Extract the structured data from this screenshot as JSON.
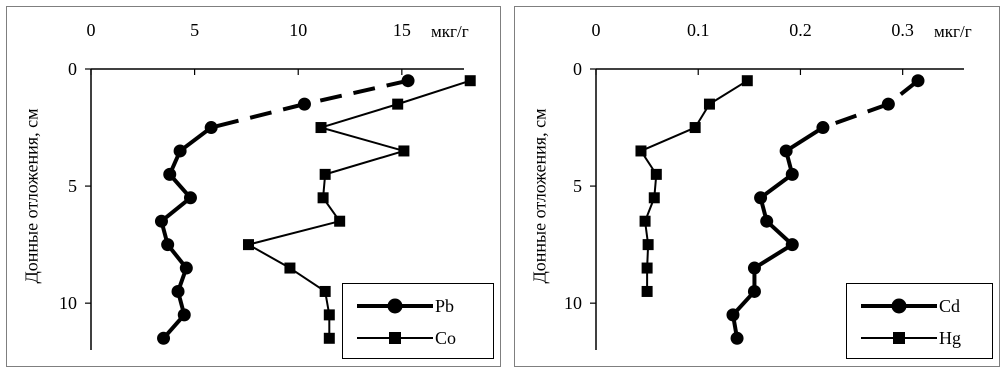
{
  "chart_data": [
    {
      "type": "line",
      "x_unit": "мкг/г",
      "ylabel": "Донные отложения, см",
      "xlim": [
        0,
        18
      ],
      "ylim": [
        0,
        12
      ],
      "x_ticks": [
        0,
        5,
        10,
        15
      ],
      "x_tick_labels": [
        "0",
        "5",
        "10",
        "15"
      ],
      "y_ticks": [
        0,
        5,
        10
      ],
      "y_tick_labels": [
        "0",
        "5",
        "10"
      ],
      "y_inverted": true,
      "x_axis_position": "top",
      "series": [
        {
          "name": "Pb",
          "marker": "circle",
          "line": "dashed-top-solid-bottom",
          "x": [
            15.3,
            10.3,
            5.8,
            4.3,
            3.8,
            4.8,
            3.4,
            3.7,
            4.6,
            4.2,
            4.5,
            3.5
          ],
          "y": [
            0.5,
            1.5,
            2.5,
            3.5,
            4.5,
            5.5,
            6.5,
            7.5,
            8.5,
            9.5,
            10.5,
            11.5
          ]
        },
        {
          "name": "Co",
          "marker": "square",
          "line": "solid",
          "x": [
            18.3,
            14.8,
            11.1,
            15.1,
            11.3,
            11.2,
            12.0,
            7.6,
            9.6,
            11.3,
            11.5,
            11.5
          ],
          "y": [
            0.5,
            1.5,
            2.5,
            3.5,
            4.5,
            5.5,
            6.5,
            7.5,
            8.5,
            9.5,
            10.5,
            11.5
          ]
        }
      ],
      "legend": "bottom-right"
    },
    {
      "type": "line",
      "x_unit": "мкг/г",
      "ylabel": "Донные отложения, см",
      "xlim": [
        0,
        0.36
      ],
      "ylim": [
        0,
        12
      ],
      "x_ticks": [
        0,
        0.1,
        0.2,
        0.3
      ],
      "x_tick_labels": [
        "0",
        "0.1",
        "0.2",
        "0.3"
      ],
      "y_ticks": [
        0,
        5,
        10
      ],
      "y_tick_labels": [
        "0",
        "5",
        "10"
      ],
      "y_inverted": true,
      "x_axis_position": "top",
      "series": [
        {
          "name": "Cd",
          "marker": "circle",
          "line": "dashed-top-solid-bottom",
          "x": [
            0.315,
            0.286,
            0.222,
            0.186,
            0.192,
            0.161,
            0.167,
            0.192,
            0.155,
            0.155,
            0.134,
            0.138
          ],
          "y": [
            0.5,
            1.5,
            2.5,
            3.5,
            4.5,
            5.5,
            6.5,
            7.5,
            8.5,
            9.5,
            10.5,
            11.5
          ]
        },
        {
          "name": "Hg",
          "marker": "square",
          "line": "solid",
          "x": [
            0.148,
            0.111,
            0.097,
            0.044,
            0.059,
            0.057,
            0.048,
            0.051,
            0.05,
            0.05
          ],
          "y": [
            0.5,
            1.5,
            2.5,
            3.5,
            4.5,
            5.5,
            6.5,
            7.5,
            8.5,
            9.5
          ]
        }
      ],
      "legend": "bottom-right"
    }
  ]
}
